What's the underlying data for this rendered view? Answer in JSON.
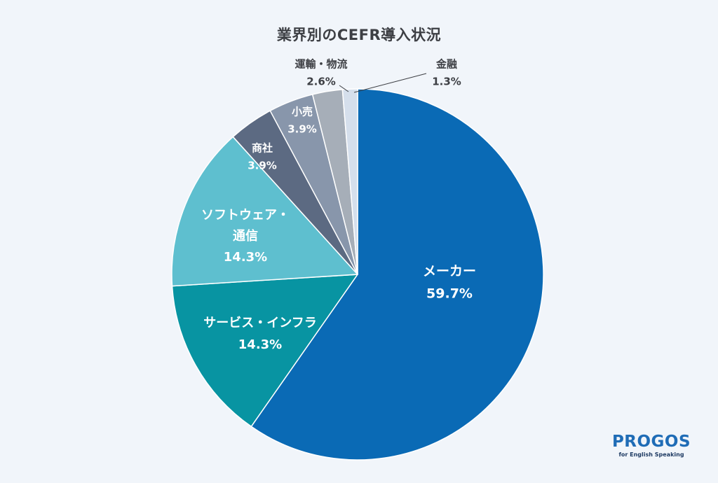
{
  "chart_data": {
    "type": "pie",
    "title": "業界別のCEFR導入状況",
    "start": "12 o'clock",
    "direction": "clockwise",
    "slices": [
      {
        "label_lines": [
          "メーカー"
        ],
        "value": 59.7,
        "value_text": "59.7%",
        "color": "#0a6ab5",
        "label_placement": "inside"
      },
      {
        "label_lines": [
          "サービス・インフラ"
        ],
        "value": 14.3,
        "value_text": "14.3%",
        "color": "#0894a2",
        "label_placement": "inside"
      },
      {
        "label_lines": [
          "ソフトウェア・",
          "通信"
        ],
        "value": 14.3,
        "value_text": "14.3%",
        "color": "#5ebfcf",
        "label_placement": "inside"
      },
      {
        "label_lines": [
          "商社"
        ],
        "value": 3.9,
        "value_text": "3.9%",
        "color": "#5c6a82",
        "label_placement": "inside"
      },
      {
        "label_lines": [
          "小売"
        ],
        "value": 3.9,
        "value_text": "3.9%",
        "color": "#8896ab",
        "label_placement": "inside"
      },
      {
        "label_lines": [
          "運輸・物流"
        ],
        "value": 2.6,
        "value_text": "2.6%",
        "color": "#a6aeb8",
        "label_placement": "outside"
      },
      {
        "label_lines": [
          "金融"
        ],
        "value": 1.3,
        "value_text": "1.3%",
        "color": "#d5dfec",
        "label_placement": "outside"
      }
    ]
  },
  "logo": {
    "main": "PROGOS",
    "sub": "for English Speaking",
    "color": "#1f6cb6"
  },
  "background_color": "#f1f5fa"
}
